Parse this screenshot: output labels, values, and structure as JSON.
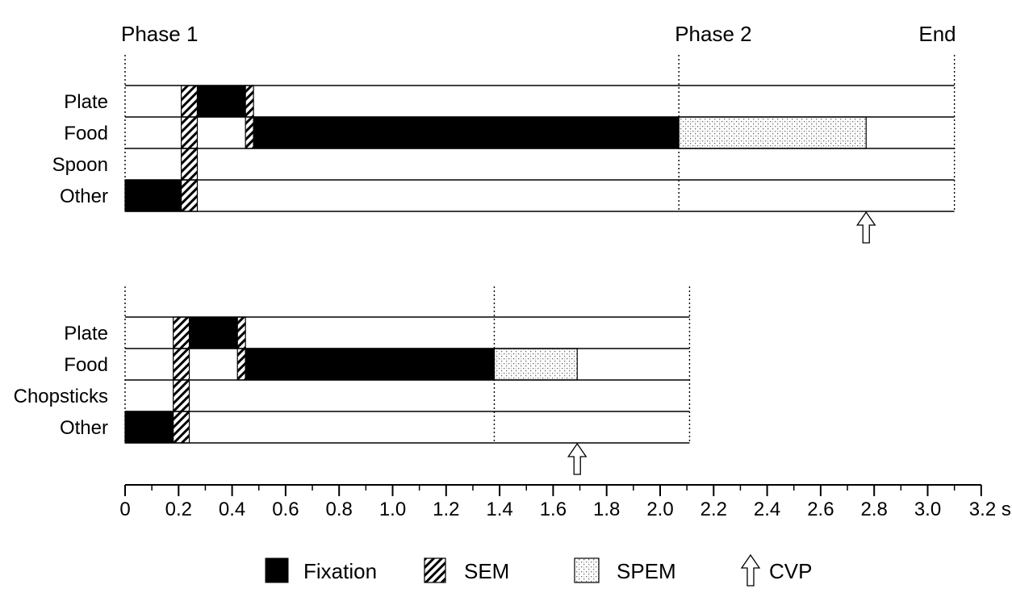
{
  "chart_data": {
    "type": "timeline",
    "x_unit": "s",
    "x_axis": {
      "range": [
        0,
        3.2
      ],
      "ticks": [
        0,
        0.2,
        0.4,
        0.6,
        0.8,
        1.0,
        1.2,
        1.4,
        1.6,
        1.8,
        2.0,
        2.2,
        2.4,
        2.6,
        2.8,
        3.0,
        3.2
      ],
      "tick_labels": [
        "0",
        "0.2",
        "0.4",
        "0.6",
        "0.8",
        "1.0",
        "1.2",
        "1.4",
        "1.6",
        "1.8",
        "2.0",
        "2.2",
        "2.4",
        "2.6",
        "2.8",
        "3.0",
        "3.2 s"
      ]
    },
    "legend": [
      {
        "kind": "fixation",
        "label": "Fixation"
      },
      {
        "kind": "sem",
        "label": "SEM"
      },
      {
        "kind": "spem",
        "label": "SPEM"
      },
      {
        "kind": "cvp",
        "label": "CVP"
      }
    ],
    "panels": [
      {
        "rows": [
          "Plate",
          "Food",
          "Spoon",
          "Other"
        ],
        "markers": [
          {
            "t": 0,
            "label": "Phase 1"
          },
          {
            "t": 2.07,
            "label": "Phase 2"
          },
          {
            "t": 3.1,
            "label": "End"
          }
        ],
        "end": 3.1,
        "cvp": 2.77,
        "segments": [
          {
            "row": "Other",
            "kind": "fixation",
            "start": 0.0,
            "end": 0.21
          },
          {
            "row": "Plate",
            "kind": "sem",
            "start": 0.21,
            "end": 0.27
          },
          {
            "row": "Food",
            "kind": "sem",
            "start": 0.21,
            "end": 0.27
          },
          {
            "row": "Spoon",
            "kind": "sem",
            "start": 0.21,
            "end": 0.27
          },
          {
            "row": "Other",
            "kind": "sem",
            "start": 0.21,
            "end": 0.27
          },
          {
            "row": "Plate",
            "kind": "fixation",
            "start": 0.27,
            "end": 0.45
          },
          {
            "row": "Plate",
            "kind": "sem",
            "start": 0.45,
            "end": 0.48
          },
          {
            "row": "Food",
            "kind": "sem",
            "start": 0.45,
            "end": 0.48
          },
          {
            "row": "Food",
            "kind": "fixation",
            "start": 0.48,
            "end": 2.07
          },
          {
            "row": "Food",
            "kind": "spem",
            "start": 2.07,
            "end": 2.77
          }
        ]
      },
      {
        "rows": [
          "Plate",
          "Food",
          "Chopsticks",
          "Other"
        ],
        "markers": [
          {
            "t": 0,
            "label": ""
          },
          {
            "t": 1.38,
            "label": ""
          },
          {
            "t": 2.11,
            "label": ""
          }
        ],
        "end": 2.11,
        "cvp": 1.69,
        "segments": [
          {
            "row": "Other",
            "kind": "fixation",
            "start": 0.0,
            "end": 0.18
          },
          {
            "row": "Plate",
            "kind": "sem",
            "start": 0.18,
            "end": 0.24
          },
          {
            "row": "Food",
            "kind": "sem",
            "start": 0.18,
            "end": 0.24
          },
          {
            "row": "Chopsticks",
            "kind": "sem",
            "start": 0.18,
            "end": 0.24
          },
          {
            "row": "Other",
            "kind": "sem",
            "start": 0.18,
            "end": 0.24
          },
          {
            "row": "Plate",
            "kind": "fixation",
            "start": 0.24,
            "end": 0.42
          },
          {
            "row": "Plate",
            "kind": "sem",
            "start": 0.42,
            "end": 0.45
          },
          {
            "row": "Food",
            "kind": "sem",
            "start": 0.42,
            "end": 0.45
          },
          {
            "row": "Food",
            "kind": "fixation",
            "start": 0.45,
            "end": 1.38
          },
          {
            "row": "Food",
            "kind": "spem",
            "start": 1.38,
            "end": 1.69
          }
        ]
      }
    ]
  }
}
